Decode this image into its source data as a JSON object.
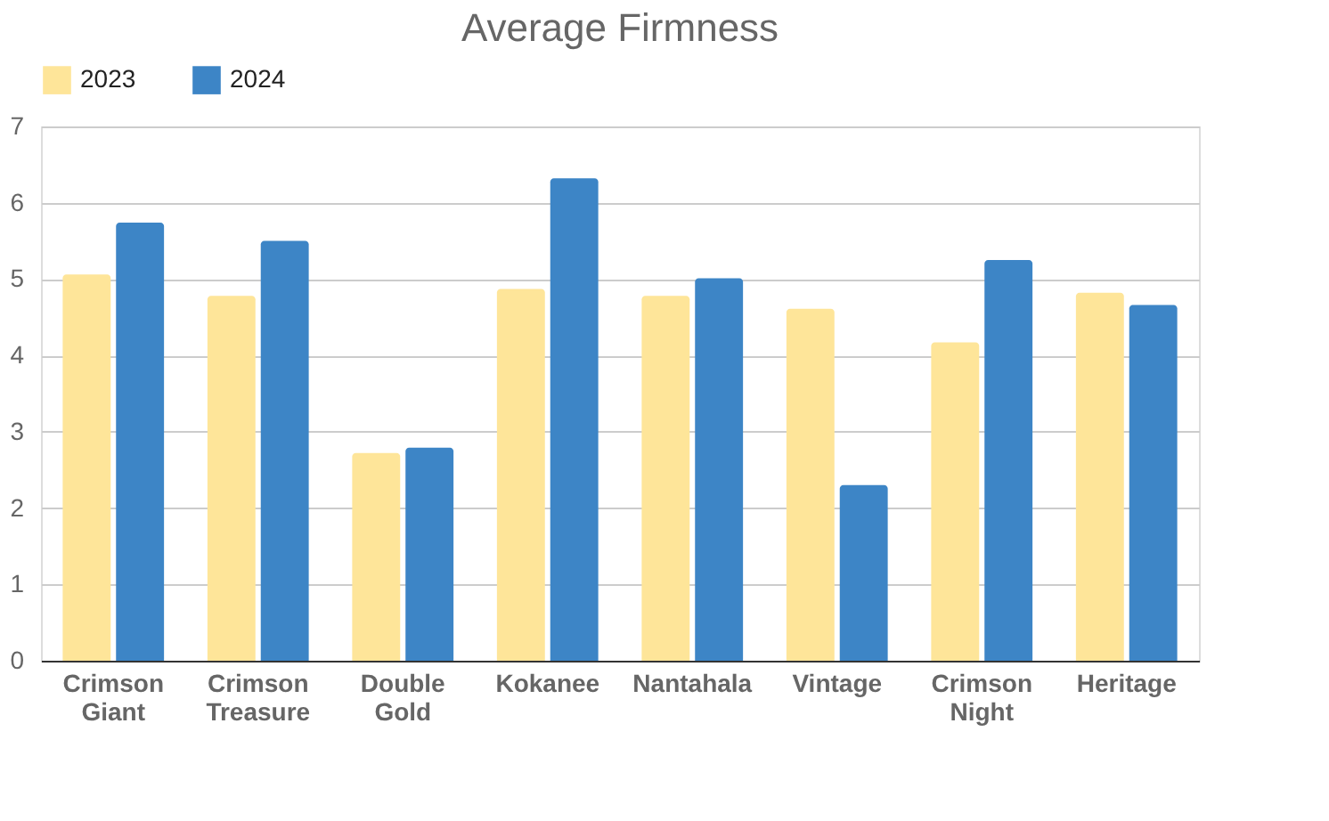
{
  "chart_data": {
    "type": "bar",
    "title": "Average Firmness",
    "categories": [
      "Crimson Giant",
      "Crimson Treasure",
      "Double Gold",
      "Kokanee",
      "Nantahala",
      "Vintage",
      "Crimson Night",
      "Heritage"
    ],
    "series": [
      {
        "name": "2023",
        "color": "#fee599",
        "values": [
          5.06,
          4.78,
          2.72,
          4.87,
          4.78,
          4.61,
          4.17,
          4.82
        ]
      },
      {
        "name": "2024",
        "color": "#3d85c6",
        "values": [
          5.74,
          5.5,
          2.79,
          6.32,
          5.01,
          2.3,
          5.25,
          4.66
        ]
      }
    ],
    "ylim": [
      0,
      7
    ],
    "yticks": [
      0,
      1,
      2,
      3,
      4,
      5,
      6,
      7
    ],
    "grid": "y",
    "legend": "top"
  }
}
